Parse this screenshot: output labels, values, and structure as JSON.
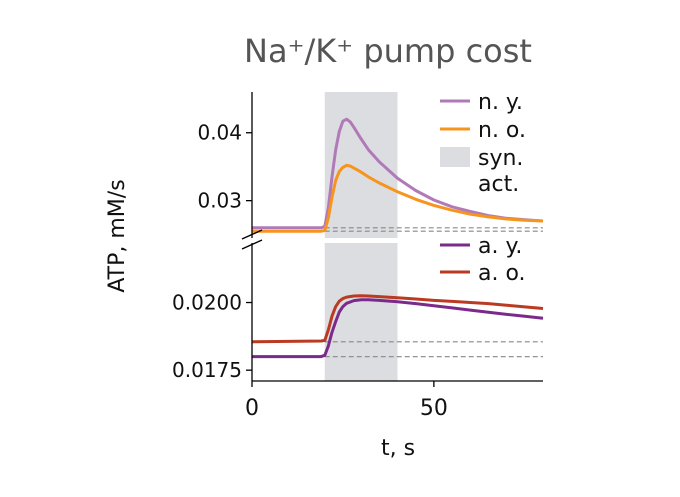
{
  "chart_data": {
    "type": "line",
    "title": "Na⁺/K⁺ pump cost",
    "xlabel": "t, s",
    "ylabel": "ATP, mM/s",
    "xlim": [
      0,
      80
    ],
    "xticks": [
      0,
      50
    ],
    "broken_y_axis": true,
    "shaded_region": {
      "x": [
        20,
        40
      ],
      "label": "syn.\nact.",
      "color": "#dcdde0"
    },
    "colors": {
      "n_y": "#b07ab8",
      "n_o": "#f7941d",
      "a_y": "#7b2a8c",
      "a_o": "#bb3a22"
    },
    "panels": [
      {
        "position": "top",
        "ylim": [
          0.0245,
          0.046
        ],
        "yticks": [
          0.03,
          0.04
        ],
        "ytick_labels": [
          "0.03",
          "0.04"
        ],
        "baselines": [
          0.026,
          0.0255
        ],
        "legend_placement": "upper-right",
        "series": [
          {
            "name": "n. y.",
            "color_key": "n_y",
            "x": [
              0,
              19,
              20,
              21,
              22,
              23,
              24,
              25,
              26,
              27,
              28,
              30,
              32,
              35,
              40,
              45,
              50,
              55,
              60,
              65,
              70,
              75,
              80
            ],
            "y": [
              0.026,
              0.026,
              0.0262,
              0.029,
              0.0335,
              0.0375,
              0.0402,
              0.0417,
              0.042,
              0.0416,
              0.0408,
              0.0391,
              0.0375,
              0.0357,
              0.0333,
              0.0315,
              0.0301,
              0.0291,
              0.0284,
              0.0278,
              0.0274,
              0.0272,
              0.027
            ]
          },
          {
            "name": "n. o.",
            "color_key": "n_o",
            "x": [
              0,
              19,
              20,
              21,
              22,
              23,
              24,
              25,
              26,
              27,
              28,
              30,
              32,
              35,
              40,
              45,
              50,
              55,
              60,
              65,
              70,
              75,
              80
            ],
            "y": [
              0.0255,
              0.0255,
              0.0256,
              0.0275,
              0.0305,
              0.033,
              0.0343,
              0.0349,
              0.0352,
              0.0351,
              0.0348,
              0.0342,
              0.0335,
              0.0326,
              0.0313,
              0.0302,
              0.0293,
              0.0286,
              0.028,
              0.0276,
              0.0273,
              0.0271,
              0.027
            ]
          }
        ]
      },
      {
        "position": "bottom",
        "ylim": [
          0.0171,
          0.0222
        ],
        "yticks": [
          0.0175,
          0.02
        ],
        "ytick_labels": [
          "0.0175",
          "0.0200"
        ],
        "baselines": [
          0.01855,
          0.018
        ],
        "legend_placement": "upper-right",
        "series": [
          {
            "name": "a. y.",
            "color_key": "a_y",
            "x": [
              0,
              19,
              20,
              21,
              22,
              23,
              24,
              25,
              26,
              28,
              30,
              32,
              35,
              40,
              45,
              50,
              55,
              60,
              65,
              70,
              75,
              80
            ],
            "y": [
              0.018,
              0.018,
              0.01805,
              0.0184,
              0.0189,
              0.0193,
              0.01965,
              0.01985,
              0.01997,
              0.02007,
              0.0201,
              0.0201,
              0.02008,
              0.02003,
              0.01996,
              0.01988,
              0.0198,
              0.01972,
              0.01964,
              0.01956,
              0.01949,
              0.01942
            ]
          },
          {
            "name": "a. o.",
            "color_key": "a_o",
            "x": [
              0,
              19,
              20,
              21,
              22,
              23,
              24,
              25,
              26,
              28,
              30,
              32,
              35,
              40,
              45,
              50,
              55,
              60,
              65,
              70,
              75,
              80
            ],
            "y": [
              0.01855,
              0.01858,
              0.0186,
              0.019,
              0.0195,
              0.01985,
              0.02005,
              0.02015,
              0.0202,
              0.02024,
              0.02025,
              0.02024,
              0.02022,
              0.02018,
              0.02013,
              0.02008,
              0.02004,
              0.02,
              0.01996,
              0.0199,
              0.01984,
              0.01978
            ]
          }
        ]
      }
    ]
  }
}
